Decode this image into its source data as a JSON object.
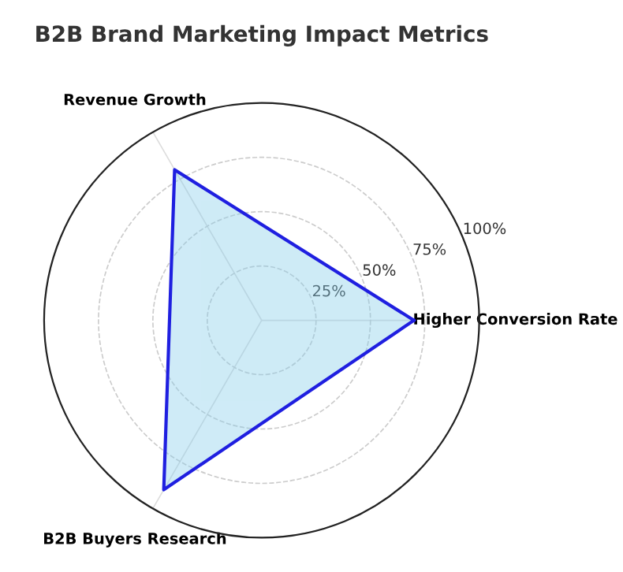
{
  "chart_data": {
    "type": "radar",
    "title": "B2B Brand Marketing Impact Metrics",
    "categories": [
      "Higher Conversion Rate",
      "B2B Buyers Research",
      "Revenue Growth"
    ],
    "series": [
      {
        "color": "#1f1fe0",
        "values": [
          70,
          90,
          80
        ]
      }
    ],
    "ylim": [
      0,
      100
    ],
    "yticks": [
      {
        "value": 25,
        "label": "25%"
      },
      {
        "value": 50,
        "label": "50%"
      },
      {
        "value": 75,
        "label": "75%"
      },
      {
        "value": 100,
        "label": "100%"
      }
    ],
    "grid": true
  }
}
